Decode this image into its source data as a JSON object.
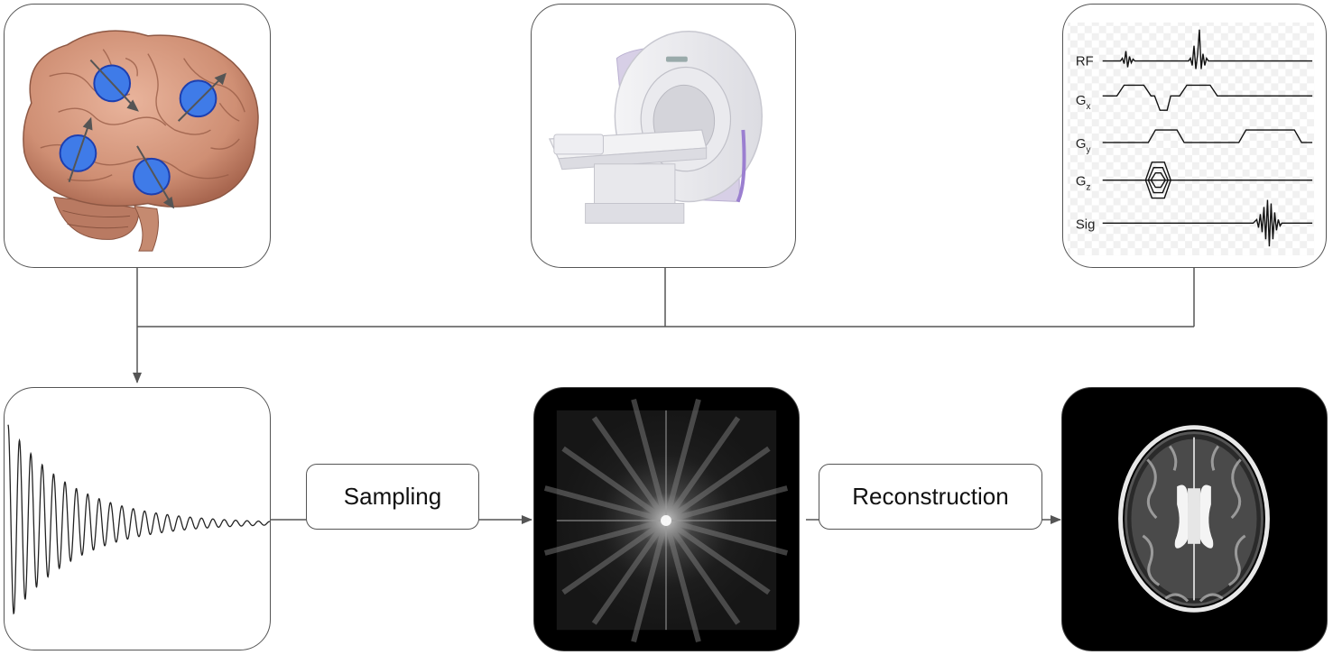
{
  "steps": {
    "sampling_label": "Sampling",
    "reconstruction_label": "Reconstruction"
  },
  "pulse_sequence": {
    "rf": "RF",
    "gx_main": "G",
    "gx_sub": "x",
    "gy_main": "G",
    "gy_sub": "y",
    "gz_main": "G",
    "gz_sub": "z",
    "sig": "Sig"
  }
}
